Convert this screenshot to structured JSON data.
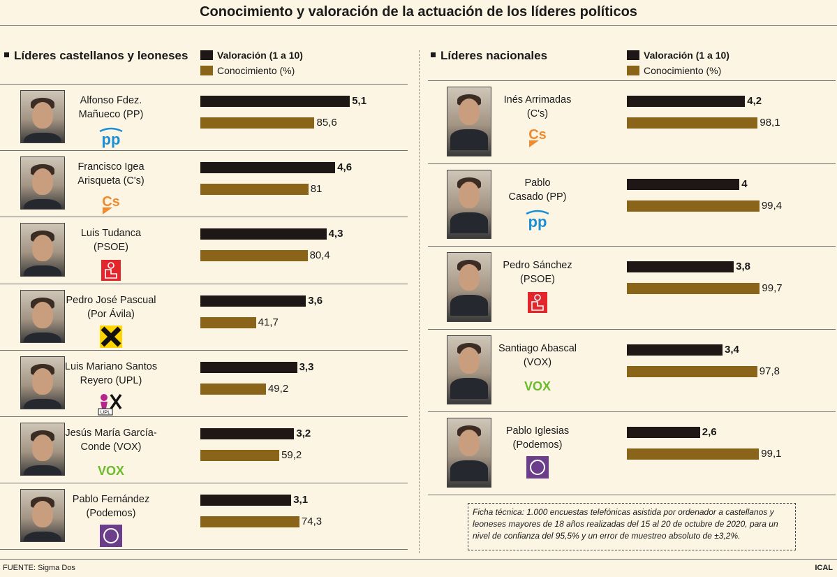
{
  "title": "Conocimiento y valoración de la actuación de los líderes políticos",
  "legend": {
    "valoracion": "Valoración (1 a 10)",
    "conocimiento": "Conocimiento (%)"
  },
  "colors": {
    "valoracion": "#1f1715",
    "conocimiento": "#8a6418"
  },
  "footer": {
    "source": "FUENTE: Sigma Dos",
    "credit": "ICAL",
    "ficha": "Ficha técnica: 1.000 encuestas telefónicas asistida por ordenador a castellanos y leoneses mayores de 18 años realizadas del 15 al 20 de octubre de 2020, para un nivel de confianza del 95,5% y un error de muestreo absoluto de ±3,2%."
  },
  "chart_data": [
    {
      "type": "bar",
      "title": "Líderes castellanos y leoneses",
      "orientation": "horizontal",
      "categories": [
        "Alfonso Fdez. Mañueco (PP)",
        "Francisco Igea Arisqueta (C's)",
        "Luis Tudanca (PSOE)",
        "Pedro José Pascual (Por Ávila)",
        "Luis Mariano Santos Reyero (UPL)",
        "Jesús María García-Conde (VOX)",
        "Pablo Fernández (Podemos)"
      ],
      "name_lines": [
        [
          "Alfonso Fdez.",
          "Mañueco (PP)"
        ],
        [
          "Francisco Igea",
          "Arisqueta (C's)"
        ],
        [
          "Luis Tudanca",
          "(PSOE)"
        ],
        [
          "Pedro José Pascual",
          "(Por Ávila)"
        ],
        [
          "Luis Mariano Santos",
          "Reyero (UPL)"
        ],
        [
          "Jesús María García-",
          "Conde (VOX)"
        ],
        [
          "Pablo Fernández",
          "(Podemos)"
        ]
      ],
      "parties": [
        "pp",
        "cs",
        "psoe",
        "porAvila",
        "upl",
        "vox",
        "podemos"
      ],
      "series": [
        {
          "name": "Valoración (1 a 10)",
          "values": [
            5.1,
            4.6,
            4.3,
            3.6,
            3.3,
            3.2,
            3.1
          ],
          "labels": [
            "5,1",
            "4,6",
            "4,3",
            "3,6",
            "3,3",
            "3,2",
            "3,1"
          ]
        },
        {
          "name": "Conocimiento (%)",
          "values": [
            85.6,
            81,
            80.4,
            41.7,
            49.2,
            59.2,
            74.3
          ],
          "labels": [
            "85,6",
            "81",
            "80,4",
            "41,7",
            "49,2",
            "59,2",
            "74,3"
          ]
        }
      ]
    },
    {
      "type": "bar",
      "title": "Líderes nacionales",
      "orientation": "horizontal",
      "categories": [
        "Inés Arrimadas (C's)",
        "Pablo Casado (PP)",
        "Pedro Sánchez (PSOE)",
        "Santiago Abascal (VOX)",
        "Pablo Iglesias (Podemos)"
      ],
      "name_lines": [
        [
          "Inés Arrimadas",
          "(C's)"
        ],
        [
          "Pablo",
          "Casado (PP)"
        ],
        [
          "Pedro Sánchez",
          "(PSOE)"
        ],
        [
          "Santiago Abascal",
          "(VOX)"
        ],
        [
          "Pablo Iglesias",
          "(Podemos)"
        ]
      ],
      "parties": [
        "cs",
        "pp",
        "psoe",
        "vox",
        "podemos"
      ],
      "series": [
        {
          "name": "Valoración (1 a 10)",
          "values": [
            4.2,
            4,
            3.8,
            3.4,
            2.6
          ],
          "labels": [
            "4,2",
            "4",
            "3,8",
            "3,4",
            "2,6"
          ]
        },
        {
          "name": "Conocimiento (%)",
          "values": [
            98.1,
            99.4,
            99.7,
            97.8,
            99.1
          ],
          "labels": [
            "98,1",
            "99,4",
            "99,7",
            "97,8",
            "99,1"
          ]
        }
      ]
    }
  ],
  "party_logos": {
    "pp": "pp",
    "cs": "Cs",
    "vox": "VOX",
    "upl": "UPL"
  }
}
